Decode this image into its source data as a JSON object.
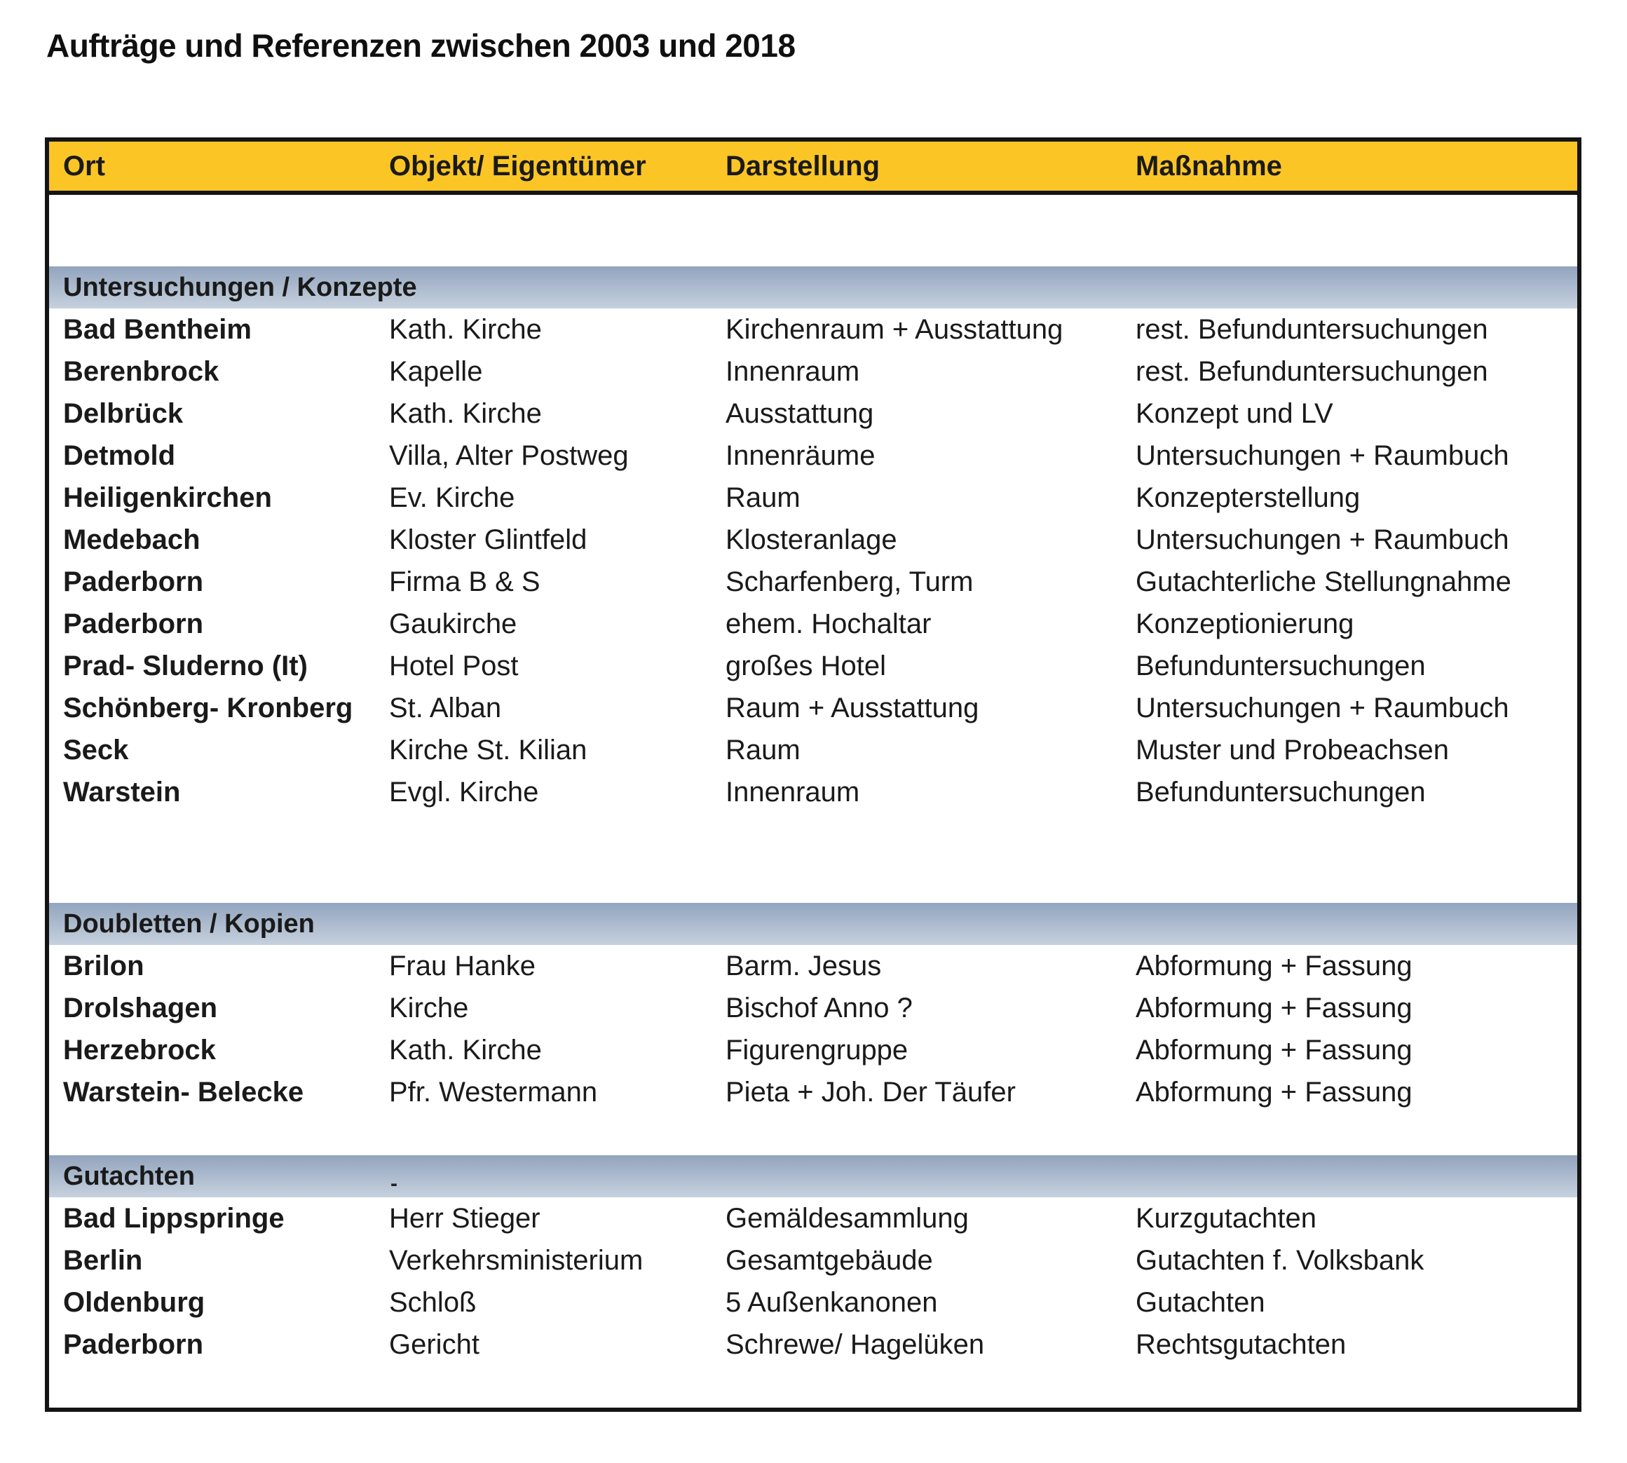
{
  "page": {
    "title": "Aufträge und Referenzen zwischen 2003 und 2018"
  },
  "table": {
    "columns": [
      "Ort",
      "Objekt/ Eigentümer",
      "Darstellung",
      "Maßnahme"
    ],
    "colors": {
      "header_bg": "#fbc525",
      "section_bg_top": "#92a4be",
      "section_bg_bottom": "#c6d1de",
      "border": "#141414"
    },
    "sections": [
      {
        "label": "Untersuchungen / Konzepte",
        "note": "",
        "rows": [
          [
            "Bad Bentheim",
            "Kath. Kirche",
            "Kirchenraum + Ausstattung",
            "rest. Befunduntersuchungen"
          ],
          [
            "Berenbrock",
            "Kapelle",
            "Innenraum",
            "rest. Befunduntersuchungen"
          ],
          [
            "Delbrück",
            "Kath. Kirche",
            "Ausstattung",
            "Konzept und LV"
          ],
          [
            "Detmold",
            "Villa, Alter Postweg",
            "Innenräume",
            "Untersuchungen + Raumbuch"
          ],
          [
            "Heiligenkirchen",
            "Ev. Kirche",
            "Raum",
            "Konzepterstellung"
          ],
          [
            "Medebach",
            "Kloster Glintfeld",
            "Klosteranlage",
            "Untersuchungen + Raumbuch"
          ],
          [
            "Paderborn",
            "Firma B & S",
            "Scharfenberg, Turm",
            "Gutachterliche Stellungnahme"
          ],
          [
            "Paderborn",
            "Gaukirche",
            "ehem. Hochaltar",
            "Konzeptionierung"
          ],
          [
            "Prad- Sluderno (It)",
            "Hotel Post",
            "großes Hotel",
            "Befunduntersuchungen"
          ],
          [
            "Schönberg- Kronberg",
            "St. Alban",
            "Raum + Ausstattung",
            "Untersuchungen + Raumbuch"
          ],
          [
            "Seck",
            "Kirche St. Kilian",
            "Raum",
            "Muster und Probeachsen"
          ],
          [
            "Warstein",
            "Evgl. Kirche",
            "Innenraum",
            "Befunduntersuchungen"
          ]
        ]
      },
      {
        "label": "Doubletten / Kopien",
        "note": "",
        "rows": [
          [
            "Brilon",
            "Frau Hanke",
            "Barm. Jesus",
            "Abformung + Fassung"
          ],
          [
            "Drolshagen",
            "Kirche",
            "Bischof Anno ?",
            "Abformung + Fassung"
          ],
          [
            "Herzebrock",
            "Kath. Kirche",
            "Figurengruppe",
            "Abformung + Fassung"
          ],
          [
            "Warstein- Belecke",
            "Pfr. Westermann",
            "Pieta + Joh. Der Täufer",
            "Abformung + Fassung"
          ]
        ]
      },
      {
        "label": "Gutachten",
        "note": "-",
        "rows": [
          [
            "Bad Lippspringe",
            "Herr Stieger",
            "Gemäldesammlung",
            "Kurzgutachten"
          ],
          [
            "Berlin",
            "Verkehrsministerium",
            "Gesamtgebäude",
            "Gutachten f. Volksbank"
          ],
          [
            "Oldenburg",
            "Schloß",
            "5 Außenkanonen",
            "Gutachten"
          ],
          [
            "Paderborn",
            "Gericht",
            "Schrewe/ Hagelüken",
            "Rechtsgutachten"
          ]
        ]
      }
    ]
  }
}
